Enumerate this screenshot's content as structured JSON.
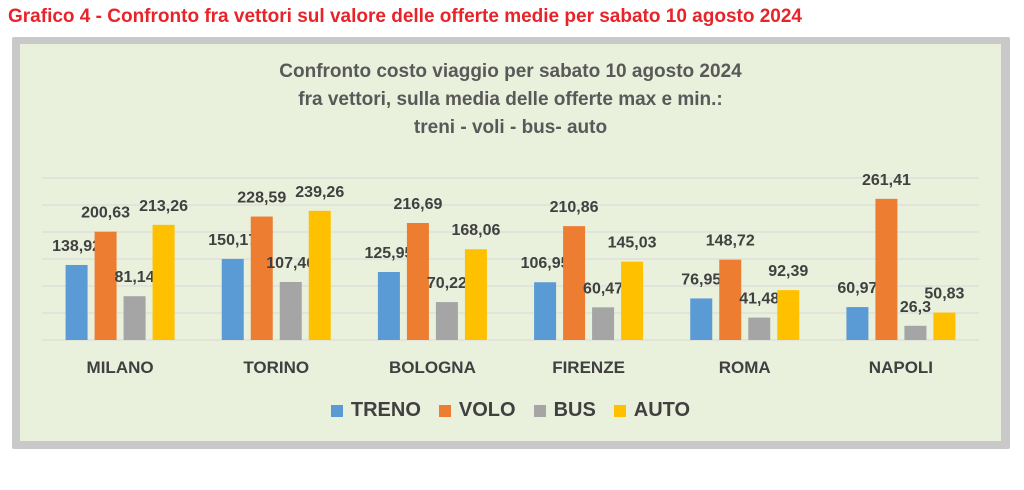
{
  "heading": "Grafico 4 - Confronto fra vettori sul valore delle offerte medie per sabato 10 agosto 2024",
  "chart_data": {
    "type": "bar",
    "title_lines": [
      "Confronto costo viaggio per sabato 10 agosto 2024",
      "fra vettori, sulla media delle offerte max e min.:",
      "treni - voli - bus- auto"
    ],
    "categories": [
      "MILANO",
      "TORINO",
      "BOLOGNA",
      "FIRENZE",
      "ROMA",
      "NAPOLI"
    ],
    "series": [
      {
        "name": "TRENO",
        "color": "#5b9bd5",
        "values": [
          138.92,
          150.17,
          125.95,
          106.95,
          76.95,
          60.97
        ],
        "labels": [
          "138,92",
          "150,17",
          "125,95",
          "106,95",
          "76,95",
          "60,97"
        ]
      },
      {
        "name": "VOLO",
        "color": "#ed7d31",
        "values": [
          200.63,
          228.59,
          216.69,
          210.86,
          148.72,
          261.41
        ],
        "labels": [
          "200,63",
          "228,59",
          "216,69",
          "210,86",
          "148,72",
          "261,41"
        ]
      },
      {
        "name": "BUS",
        "color": "#a5a5a5",
        "values": [
          81.14,
          107.46,
          70.22,
          60.47,
          41.48,
          26.3
        ],
        "labels": [
          "81,14",
          "107,46",
          "70,22",
          "60,47",
          "41,48",
          "26,3"
        ]
      },
      {
        "name": "AUTO",
        "color": "#ffc000",
        "values": [
          213.26,
          239.26,
          168.06,
          145.03,
          92.39,
          50.83
        ],
        "labels": [
          "213,26",
          "239,26",
          "168,06",
          "145,03",
          "92,39",
          "50,83"
        ]
      }
    ],
    "ylim": [
      0,
      300
    ],
    "grid": true,
    "legend": "bottom",
    "colors": {
      "gridline": "#d9d9d9",
      "text": "#404040"
    }
  }
}
